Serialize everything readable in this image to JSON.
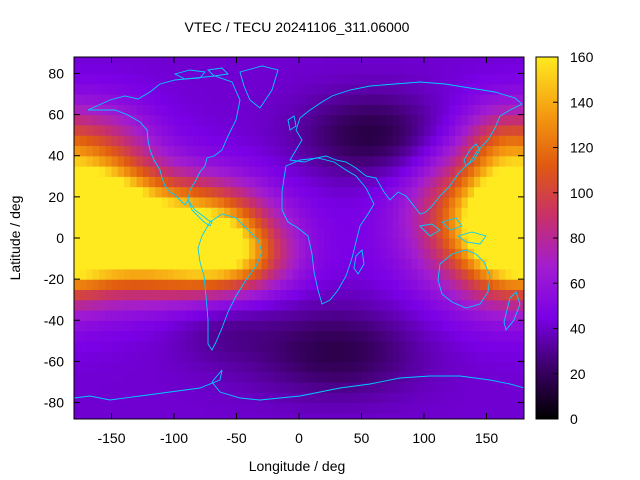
{
  "chart_data": {
    "type": "heatmap",
    "title": "VTEC / TECU 20241106_311.06000",
    "xlabel": "Longitude / deg",
    "ylabel": "Latitude / deg",
    "xlim": [
      -180,
      180
    ],
    "ylim": [
      -88,
      88
    ],
    "xticks": [
      -150,
      -100,
      -50,
      0,
      50,
      100,
      150
    ],
    "yticks": [
      -80,
      -60,
      -40,
      -20,
      0,
      20,
      40,
      60,
      80
    ],
    "colorbar": {
      "range": [
        0,
        160
      ],
      "ticks": [
        0,
        20,
        40,
        60,
        80,
        100,
        120,
        140,
        160
      ],
      "palette": [
        "#000000",
        "#3b0066",
        "#7a00e6",
        "#a21dd0",
        "#c8306a",
        "#e05a10",
        "#f49a10",
        "#ffea20"
      ]
    },
    "coastline_color": "#00ccff",
    "grid": false,
    "grid_step_deg": 5,
    "features": [
      {
        "lon": -165,
        "lat": 10,
        "sx": 40,
        "sy": 16,
        "amp": 95
      },
      {
        "lon": -120,
        "lat": 5,
        "sx": 60,
        "sy": 18,
        "amp": 70
      },
      {
        "lon": -70,
        "lat": 5,
        "sx": 30,
        "sy": 14,
        "amp": 60
      },
      {
        "lon": -50,
        "lat": -10,
        "sx": 30,
        "sy": 12,
        "amp": 55
      },
      {
        "lon": -100,
        "lat": -15,
        "sx": 40,
        "sy": 12,
        "amp": 45
      },
      {
        "lon": 160,
        "lat": 10,
        "sx": 45,
        "sy": 25,
        "amp": 85
      },
      {
        "lon": 170,
        "lat": -12,
        "sx": 25,
        "sy": 15,
        "amp": 35
      },
      {
        "lon": -160,
        "lat": 45,
        "sx": 30,
        "sy": 15,
        "amp": 35
      },
      {
        "lon": 160,
        "lat": 45,
        "sx": 20,
        "sy": 14,
        "amp": 30
      },
      {
        "lon": 60,
        "lat": 50,
        "sx": 40,
        "sy": 14,
        "amp": -28
      },
      {
        "lon": 30,
        "lat": -55,
        "sx": 45,
        "sy": 15,
        "amp": -25
      },
      {
        "lon": -60,
        "lat": -40,
        "sx": 30,
        "sy": 15,
        "amp": -12
      }
    ],
    "background_value": 42
  }
}
